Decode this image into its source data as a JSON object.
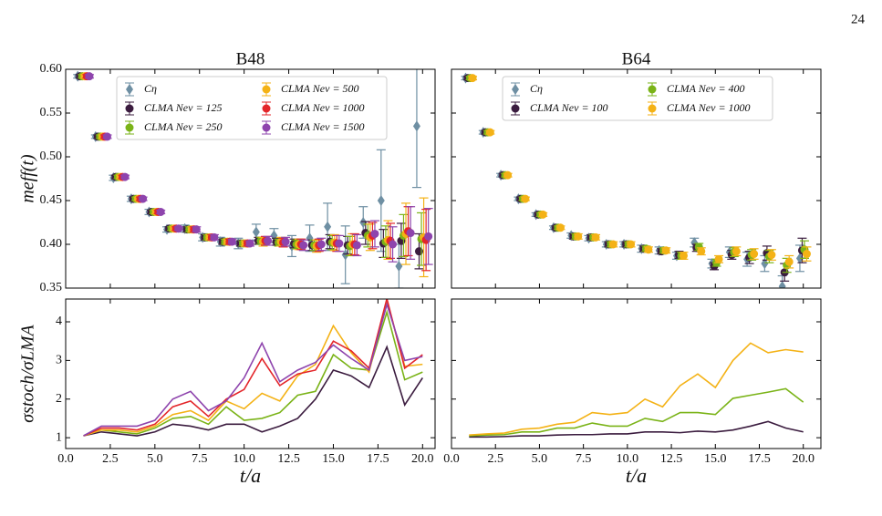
{
  "page_number": "24",
  "chart_data": [
    {
      "type": "errorbar",
      "title": "B48",
      "ylabel": "meff(t)",
      "xlim": [
        0,
        20.7
      ],
      "ylim": [
        0.35,
        0.6
      ],
      "xticks": [
        0,
        2.5,
        5,
        7.5,
        10,
        12.5,
        15,
        17.5,
        20
      ],
      "yticks": [
        0.35,
        {
          "value": 0.4,
          "label": "0.40"
        },
        0.45,
        {
          "value": 0.5,
          "label": "0.50"
        },
        0.55,
        {
          "value": 0.6,
          "label": "0.60"
        }
      ],
      "x": [
        1,
        2,
        3,
        4,
        5,
        6,
        7,
        8,
        9,
        10,
        11,
        12,
        13,
        14,
        15,
        16,
        17,
        18,
        19,
        20
      ],
      "series": [
        {
          "name": "Cη",
          "color": "#6e8fa3",
          "marker": "diamond",
          "values": [
            0.592,
            0.523,
            0.476,
            0.452,
            0.437,
            0.417,
            0.418,
            0.408,
            0.403,
            0.401,
            0.414,
            0.41,
            0.398,
            0.407,
            0.42,
            0.388,
            0.425,
            0.45,
            0.375,
            0.535
          ],
          "errors": [
            0.002,
            0.002,
            0.003,
            0.003,
            0.003,
            0.003,
            0.004,
            0.004,
            0.005,
            0.006,
            0.009,
            0.008,
            0.012,
            0.015,
            0.027,
            0.033,
            0.018,
            0.058,
            0.025,
            0.07
          ]
        },
        {
          "name": "CLMA Nev = 125",
          "color": "#3b1c3f",
          "marker": "circle",
          "values": [
            0.592,
            0.523,
            0.477,
            0.452,
            0.437,
            0.418,
            0.417,
            0.408,
            0.403,
            0.401,
            0.404,
            0.403,
            0.401,
            0.399,
            0.403,
            0.399,
            0.413,
            0.401,
            0.404,
            0.392
          ],
          "errors": [
            0.002,
            0.002,
            0.002,
            0.002,
            0.002,
            0.002,
            0.003,
            0.003,
            0.003,
            0.003,
            0.004,
            0.004,
            0.005,
            0.006,
            0.008,
            0.01,
            0.013,
            0.016,
            0.02,
            0.02
          ]
        },
        {
          "name": "CLMA Nev = 250",
          "color": "#7ab317",
          "marker": "circle",
          "values": [
            0.592,
            0.523,
            0.477,
            0.452,
            0.437,
            0.418,
            0.417,
            0.408,
            0.403,
            0.401,
            0.404,
            0.402,
            0.4,
            0.399,
            0.402,
            0.398,
            0.41,
            0.403,
            0.41,
            0.406
          ],
          "errors": [
            0.002,
            0.002,
            0.002,
            0.002,
            0.002,
            0.002,
            0.003,
            0.003,
            0.003,
            0.003,
            0.004,
            0.004,
            0.005,
            0.006,
            0.008,
            0.011,
            0.013,
            0.018,
            0.024,
            0.03
          ]
        },
        {
          "name": "CLMA Nev = 500",
          "color": "#f4b216",
          "marker": "circle",
          "values": [
            0.592,
            0.523,
            0.477,
            0.452,
            0.437,
            0.418,
            0.417,
            0.408,
            0.403,
            0.401,
            0.403,
            0.403,
            0.4,
            0.398,
            0.402,
            0.4,
            0.408,
            0.405,
            0.412,
            0.408
          ],
          "errors": [
            0.002,
            0.002,
            0.002,
            0.002,
            0.002,
            0.002,
            0.003,
            0.003,
            0.003,
            0.003,
            0.005,
            0.005,
            0.006,
            0.007,
            0.009,
            0.012,
            0.015,
            0.022,
            0.035,
            0.045
          ]
        },
        {
          "name": "CLMA Nev = 1000",
          "color": "#e3262a",
          "marker": "circle",
          "values": [
            0.592,
            0.523,
            0.477,
            0.452,
            0.437,
            0.418,
            0.417,
            0.408,
            0.403,
            0.401,
            0.404,
            0.402,
            0.4,
            0.399,
            0.401,
            0.4,
            0.41,
            0.404,
            0.415,
            0.405
          ],
          "errors": [
            0.002,
            0.002,
            0.002,
            0.002,
            0.002,
            0.002,
            0.003,
            0.003,
            0.003,
            0.003,
            0.005,
            0.005,
            0.006,
            0.007,
            0.009,
            0.012,
            0.015,
            0.02,
            0.028,
            0.035
          ]
        },
        {
          "name": "CLMA Nev = 1500",
          "color": "#8e44ad",
          "marker": "circle",
          "values": [
            0.592,
            0.523,
            0.477,
            0.452,
            0.437,
            0.418,
            0.417,
            0.408,
            0.403,
            0.401,
            0.404,
            0.403,
            0.399,
            0.4,
            0.401,
            0.399,
            0.412,
            0.4,
            0.413,
            0.409
          ],
          "errors": [
            0.002,
            0.002,
            0.002,
            0.002,
            0.002,
            0.002,
            0.003,
            0.003,
            0.003,
            0.003,
            0.005,
            0.005,
            0.006,
            0.007,
            0.009,
            0.012,
            0.015,
            0.02,
            0.03,
            0.032
          ]
        }
      ]
    },
    {
      "type": "errorbar",
      "title": "B64",
      "xlim": [
        0,
        21.0
      ],
      "ylim": [
        0.35,
        0.6
      ],
      "xticks": [
        0,
        2.5,
        5,
        7.5,
        10,
        12.5,
        15,
        17.5,
        20
      ],
      "yticks": [
        0.35,
        0.4,
        0.45,
        0.5,
        0.55,
        0.6
      ],
      "x": [
        1,
        2,
        3,
        4,
        5,
        6,
        7,
        8,
        9,
        10,
        11,
        12,
        13,
        14,
        15,
        16,
        17,
        18,
        19,
        20
      ],
      "series": [
        {
          "name": "Cη",
          "color": "#6e8fa3",
          "marker": "diamond",
          "values": [
            0.59,
            0.528,
            0.479,
            0.452,
            0.434,
            0.419,
            0.41,
            0.407,
            0.4,
            0.4,
            0.395,
            0.393,
            0.387,
            0.402,
            0.378,
            0.391,
            0.383,
            0.378,
            0.352,
            0.384
          ],
          "errors": [
            0.002,
            0.002,
            0.002,
            0.002,
            0.002,
            0.002,
            0.003,
            0.003,
            0.003,
            0.003,
            0.004,
            0.004,
            0.004,
            0.005,
            0.005,
            0.006,
            0.008,
            0.009,
            0.012,
            0.015
          ]
        },
        {
          "name": "CLMA Nev = 100",
          "color": "#3b1c3f",
          "marker": "circle",
          "values": [
            0.59,
            0.528,
            0.479,
            0.452,
            0.434,
            0.419,
            0.409,
            0.408,
            0.4,
            0.4,
            0.395,
            0.392,
            0.388,
            0.396,
            0.375,
            0.388,
            0.385,
            0.39,
            0.368,
            0.393
          ],
          "errors": [
            0.002,
            0.002,
            0.002,
            0.002,
            0.002,
            0.002,
            0.003,
            0.003,
            0.003,
            0.003,
            0.003,
            0.003,
            0.004,
            0.004,
            0.004,
            0.005,
            0.007,
            0.008,
            0.01,
            0.014
          ]
        },
        {
          "name": "CLMA Nev = 400",
          "color": "#7ab317",
          "marker": "circle",
          "values": [
            0.59,
            0.528,
            0.479,
            0.452,
            0.434,
            0.419,
            0.409,
            0.408,
            0.4,
            0.4,
            0.395,
            0.393,
            0.387,
            0.397,
            0.379,
            0.391,
            0.388,
            0.386,
            0.376,
            0.394
          ],
          "errors": [
            0.002,
            0.002,
            0.002,
            0.002,
            0.002,
            0.002,
            0.003,
            0.003,
            0.003,
            0.003,
            0.003,
            0.003,
            0.004,
            0.004,
            0.004,
            0.005,
            0.006,
            0.007,
            0.008,
            0.01
          ]
        },
        {
          "name": "CLMA Nev = 1000",
          "color": "#f4b216",
          "marker": "circle",
          "values": [
            0.59,
            0.528,
            0.479,
            0.452,
            0.434,
            0.419,
            0.409,
            0.408,
            0.4,
            0.4,
            0.394,
            0.393,
            0.387,
            0.392,
            0.383,
            0.392,
            0.389,
            0.388,
            0.38,
            0.389
          ],
          "errors": [
            0.002,
            0.002,
            0.002,
            0.002,
            0.002,
            0.002,
            0.003,
            0.003,
            0.003,
            0.003,
            0.003,
            0.003,
            0.004,
            0.004,
            0.004,
            0.005,
            0.006,
            0.006,
            0.007,
            0.008
          ]
        }
      ]
    },
    {
      "type": "line",
      "ylabel": "σstoch/σLMA",
      "xlabel": "t/a",
      "xlim": [
        0,
        20.7
      ],
      "ylim": [
        0.72,
        4.59
      ],
      "xticks": [
        {
          "value": 0,
          "label": "0.0"
        },
        2.5,
        {
          "value": 5,
          "label": "5.0"
        },
        7.5,
        {
          "value": 10,
          "label": "10.0"
        },
        12.5,
        {
          "value": 15,
          "label": "15.0"
        },
        17.5,
        {
          "value": 20,
          "label": "20.0"
        }
      ],
      "yticks": [
        1,
        2,
        3,
        4
      ],
      "x": [
        1,
        2,
        3,
        4,
        5,
        6,
        7,
        8,
        9,
        10,
        11,
        12,
        13,
        14,
        15,
        16,
        17,
        18,
        19,
        20
      ],
      "series": [
        {
          "color": "#3b1c3f",
          "values": [
            1.05,
            1.15,
            1.1,
            1.05,
            1.15,
            1.35,
            1.3,
            1.2,
            1.35,
            1.35,
            1.15,
            1.3,
            1.5,
            2.0,
            2.75,
            2.6,
            2.3,
            3.35,
            1.85,
            2.55
          ]
        },
        {
          "color": "#7ab317",
          "values": [
            1.05,
            1.2,
            1.15,
            1.1,
            1.25,
            1.5,
            1.55,
            1.35,
            1.8,
            1.45,
            1.5,
            1.65,
            2.1,
            2.2,
            3.15,
            2.8,
            2.75,
            4.25,
            2.5,
            2.7
          ]
        },
        {
          "color": "#f4b216",
          "values": [
            1.05,
            1.2,
            1.2,
            1.15,
            1.3,
            1.6,
            1.7,
            1.45,
            1.95,
            1.75,
            2.15,
            1.95,
            2.6,
            2.9,
            3.9,
            3.2,
            2.7,
            4.55,
            2.85,
            2.9
          ]
        },
        {
          "color": "#e3262a",
          "values": [
            1.05,
            1.25,
            1.25,
            1.2,
            1.35,
            1.8,
            1.95,
            1.55,
            2.0,
            2.25,
            3.05,
            2.35,
            2.65,
            2.75,
            3.5,
            3.25,
            2.8,
            4.6,
            2.8,
            3.15
          ]
        },
        {
          "color": "#8e44ad",
          "values": [
            1.05,
            1.3,
            1.3,
            1.3,
            1.45,
            2.0,
            2.2,
            1.7,
            1.95,
            2.55,
            3.45,
            2.45,
            2.75,
            2.95,
            3.4,
            3.05,
            2.75,
            4.45,
            3.0,
            3.1
          ]
        }
      ]
    },
    {
      "type": "line",
      "xlabel": "t/a",
      "xlim": [
        0,
        21.0
      ],
      "ylim": [
        0.72,
        4.59
      ],
      "xticks": [
        {
          "value": 0,
          "label": "0.0"
        },
        2.5,
        {
          "value": 5,
          "label": "5.0"
        },
        7.5,
        {
          "value": 10,
          "label": "10.0"
        },
        12.5,
        {
          "value": 15,
          "label": "15.0"
        },
        17.5,
        {
          "value": 20,
          "label": "20.0"
        }
      ],
      "yticks": [
        1,
        2,
        3,
        4
      ],
      "x": [
        1,
        2,
        3,
        4,
        5,
        6,
        7,
        8,
        9,
        10,
        11,
        12,
        13,
        14,
        15,
        16,
        17,
        18,
        19,
        20
      ],
      "series": [
        {
          "color": "#3b1c3f",
          "values": [
            1.02,
            1.02,
            1.03,
            1.05,
            1.05,
            1.07,
            1.08,
            1.08,
            1.1,
            1.1,
            1.15,
            1.15,
            1.13,
            1.17,
            1.15,
            1.2,
            1.3,
            1.42,
            1.25,
            1.15
          ]
        },
        {
          "color": "#7ab317",
          "values": [
            1.05,
            1.07,
            1.08,
            1.15,
            1.15,
            1.25,
            1.25,
            1.38,
            1.3,
            1.3,
            1.5,
            1.42,
            1.65,
            1.65,
            1.6,
            2.02,
            2.1,
            2.18,
            2.27,
            1.92
          ]
        },
        {
          "color": "#f4b216",
          "values": [
            1.07,
            1.1,
            1.12,
            1.22,
            1.25,
            1.35,
            1.4,
            1.65,
            1.6,
            1.65,
            2.0,
            1.8,
            2.35,
            2.65,
            2.3,
            3.0,
            3.45,
            3.2,
            3.28,
            3.22
          ]
        }
      ]
    }
  ]
}
